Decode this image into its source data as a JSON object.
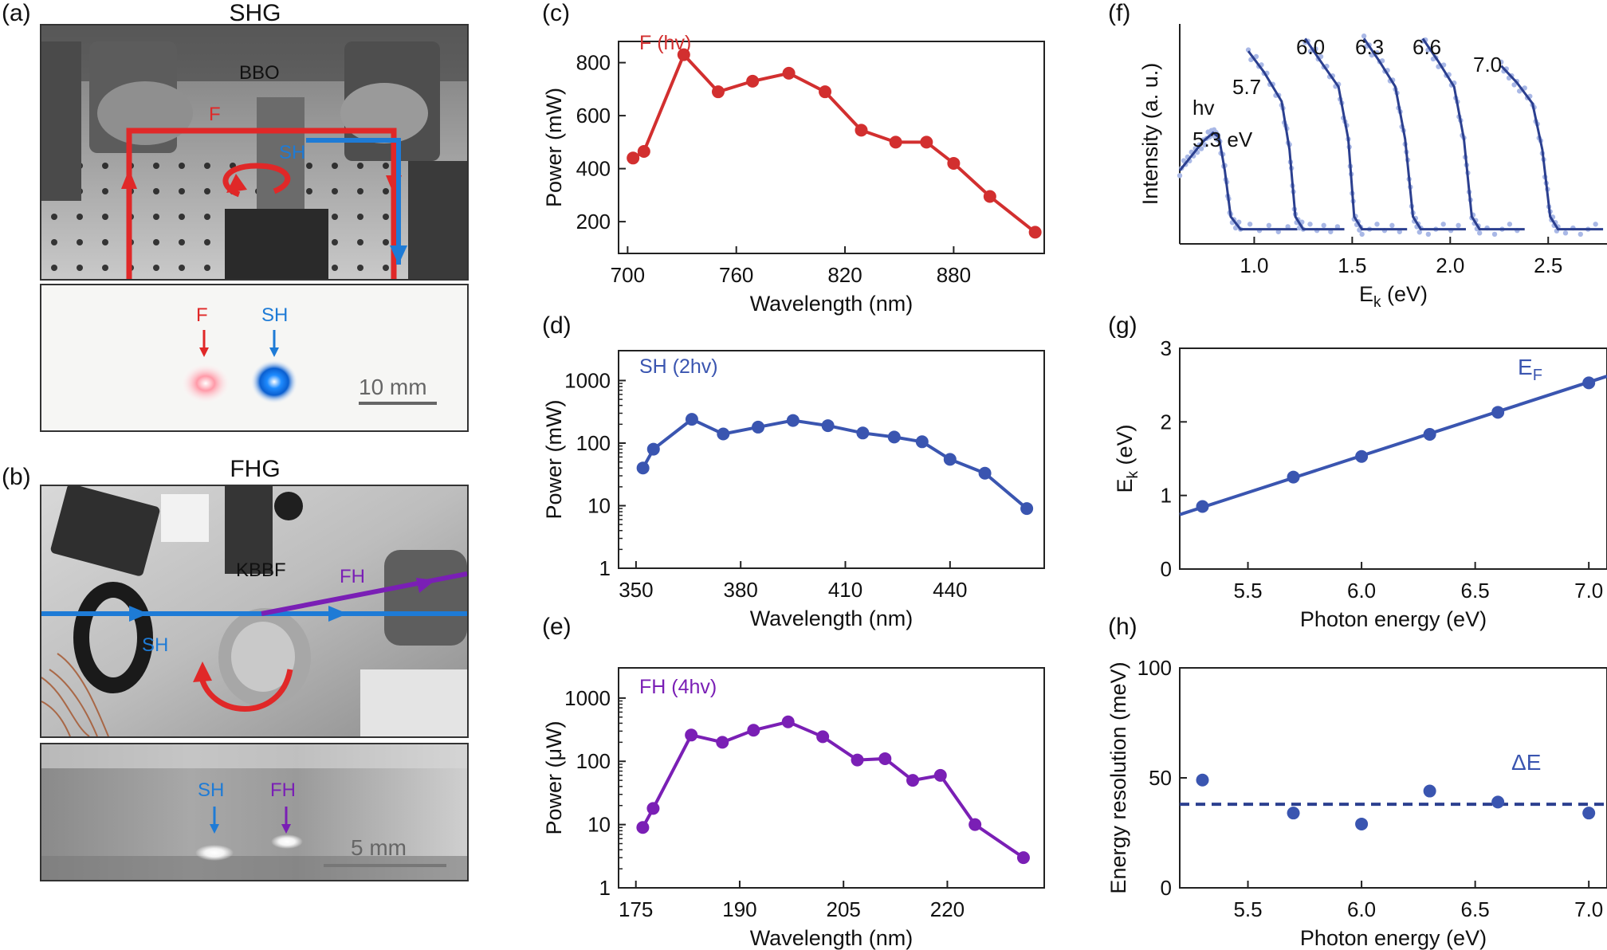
{
  "labels": {
    "a": "(a)",
    "b": "(b)",
    "c": "(c)",
    "d": "(d)",
    "e": "(e)",
    "f": "(f)",
    "g": "(g)",
    "h": "(h)"
  },
  "photos": {
    "shg": {
      "title": "SHG",
      "crystal": "BBO",
      "beam_f": "F",
      "beam_sh": "SH",
      "spot_f": "F",
      "spot_sh": "SH",
      "scale": "10 mm"
    },
    "fhg": {
      "title": "FHG",
      "crystal": "KBBF",
      "beam_sh": "SH",
      "beam_fh": "FH",
      "spot_sh": "SH",
      "spot_fh": "FH",
      "scale": "5 mm"
    }
  },
  "colors": {
    "red": "#d22f2f",
    "blue": "#3a55b0",
    "purple": "#7a1fb5",
    "light_blue": "#1e7bd6",
    "fit_dots": "#a9b8e6"
  },
  "chart_data": [
    {
      "id": "c",
      "type": "line",
      "legend": "F (hv)",
      "xlabel": "Wavelength (nm)",
      "ylabel": "Power (mW)",
      "xlim": [
        695,
        930
      ],
      "ylim": [
        80,
        880
      ],
      "xticks": [
        700,
        760,
        820,
        880
      ],
      "yticks": [
        200,
        400,
        600,
        800
      ],
      "x": [
        703,
        709,
        731,
        750,
        769,
        789,
        809,
        829,
        848,
        865,
        880,
        900,
        925
      ],
      "y": [
        440,
        465,
        830,
        690,
        730,
        760,
        690,
        545,
        500,
        500,
        420,
        295,
        160
      ]
    },
    {
      "id": "d",
      "type": "line",
      "legend": "SH (2hv)",
      "xlabel": "Wavelength (nm)",
      "ylabel": "Power (mW)",
      "yscale": "log",
      "xlim": [
        345,
        467
      ],
      "ylim": [
        1,
        3000
      ],
      "xticks": [
        350,
        380,
        410,
        440
      ],
      "yticks": [
        1,
        10,
        100,
        1000
      ],
      "x": [
        352,
        355,
        366,
        375,
        385,
        395,
        405,
        415,
        424,
        432,
        440,
        450,
        462
      ],
      "y": [
        40,
        80,
        240,
        140,
        180,
        230,
        190,
        145,
        125,
        105,
        55,
        33,
        9
      ]
    },
    {
      "id": "e",
      "type": "line",
      "legend": "FH (4hv)",
      "xlabel": "Wavelength (nm)",
      "ylabel": "Power (μW)",
      "yscale": "log",
      "xlim": [
        172.5,
        234
      ],
      "ylim": [
        1,
        3000
      ],
      "xticks": [
        175,
        190,
        205,
        220
      ],
      "yticks": [
        1,
        10,
        100,
        1000
      ],
      "x": [
        176,
        177.5,
        183,
        187.5,
        192,
        197,
        202,
        207,
        211,
        215,
        219,
        224,
        231
      ],
      "y": [
        9,
        18,
        260,
        200,
        310,
        420,
        245,
        105,
        110,
        50,
        60,
        10,
        3
      ]
    },
    {
      "id": "f",
      "type": "line",
      "legend": "",
      "xlabel": "Eₖ (eV)",
      "ylabel": "Intensity (a. u.)",
      "xlim": [
        0.62,
        2.8
      ],
      "ylim": [
        -0.05,
        1.0
      ],
      "xticks": [
        1.0,
        1.5,
        2.0,
        2.5
      ],
      "xticklabels": [
        "1.0",
        "1.5",
        "2.0",
        "2.5"
      ],
      "grid": false,
      "annotations": [
        "hv",
        "5.3 eV",
        "5.7",
        "6.0",
        "6.3",
        "6.6",
        "7.0"
      ],
      "series": [
        {
          "label": "5.3 eV",
          "x": [
            0.62,
            0.68,
            0.74,
            0.79,
            0.82,
            0.85,
            0.88,
            0.93,
            1.22
          ],
          "y": [
            0.3,
            0.37,
            0.44,
            0.48,
            0.46,
            0.3,
            0.08,
            0.02,
            0.02
          ]
        },
        {
          "label": "5.7",
          "x": [
            0.97,
            1.05,
            1.14,
            1.18,
            1.21,
            1.25,
            1.46
          ],
          "y": [
            0.87,
            0.77,
            0.63,
            0.4,
            0.08,
            0.02,
            0.02
          ]
        },
        {
          "label": "6.0",
          "x": [
            1.26,
            1.34,
            1.43,
            1.48,
            1.51,
            1.55,
            1.78
          ],
          "y": [
            0.93,
            0.82,
            0.7,
            0.45,
            0.08,
            0.02,
            0.02
          ]
        },
        {
          "label": "6.3",
          "x": [
            1.56,
            1.64,
            1.72,
            1.77,
            1.81,
            1.85,
            2.08
          ],
          "y": [
            0.93,
            0.82,
            0.7,
            0.45,
            0.08,
            0.02,
            0.02
          ]
        },
        {
          "label": "6.6",
          "x": [
            1.86,
            1.94,
            2.02,
            2.07,
            2.11,
            2.15,
            2.38
          ],
          "y": [
            0.93,
            0.82,
            0.7,
            0.45,
            0.08,
            0.02,
            0.02
          ]
        },
        {
          "label": "7.0",
          "x": [
            2.26,
            2.34,
            2.42,
            2.47,
            2.51,
            2.55,
            2.78
          ],
          "y": [
            0.8,
            0.72,
            0.62,
            0.4,
            0.08,
            0.02,
            0.02
          ]
        }
      ]
    },
    {
      "id": "g",
      "type": "scatter",
      "legend": "E",
      "legend_sub": "F",
      "xlabel": "Photon energy (eV)",
      "ylabel": "E",
      "ylabel_sub": "k",
      "ylabel_tail": " (eV)",
      "xlim": [
        5.2,
        7.08
      ],
      "ylim": [
        0,
        3
      ],
      "xticks": [
        5.5,
        6.0,
        6.5,
        7.0
      ],
      "xticklabels": [
        "5.5",
        "6.0",
        "6.5",
        "7.0"
      ],
      "yticks": [
        0,
        1,
        2,
        3
      ],
      "x": [
        5.3,
        5.7,
        6.0,
        6.3,
        6.6,
        7.0
      ],
      "y": [
        0.85,
        1.25,
        1.53,
        1.83,
        2.13,
        2.53
      ],
      "fit": {
        "x": [
          5.2,
          7.08
        ],
        "y": [
          0.74,
          2.62
        ]
      }
    },
    {
      "id": "h",
      "type": "scatter",
      "legend": "ΔE",
      "xlabel": "Photon energy (eV)",
      "ylabel": "Energy resolution (meV)",
      "xlim": [
        5.2,
        7.08
      ],
      "ylim": [
        0,
        100
      ],
      "xticks": [
        5.5,
        6.0,
        6.5,
        7.0
      ],
      "xticklabels": [
        "5.5",
        "6.0",
        "6.5",
        "7.0"
      ],
      "yticks": [
        0,
        50,
        100
      ],
      "x": [
        5.3,
        5.7,
        6.0,
        6.3,
        6.6,
        7.0
      ],
      "y": [
        49,
        34,
        29,
        44,
        39,
        34
      ],
      "mean_line": 38
    }
  ]
}
